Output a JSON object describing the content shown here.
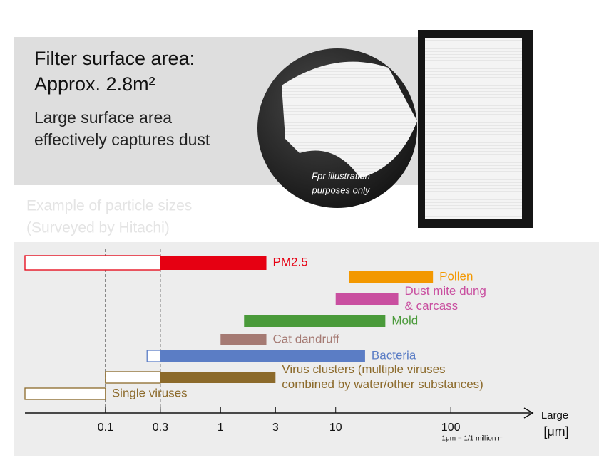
{
  "header": {
    "title_lines": [
      "Filter surface area:",
      "Approx. 2.8m²"
    ],
    "body_lines": [
      "Large surface area",
      "effectively captures dust"
    ],
    "photo_caption_lines": [
      "Fpr illustration",
      "purposes only"
    ]
  },
  "chart_data": {
    "type": "range-bar",
    "subtitle_lines": [
      "Example of particle sizes",
      "(Surveyed by Hitachi)"
    ],
    "x_label_lines": [
      "Large",
      "[μm]"
    ],
    "x_note": "1μm = 1/1 million m",
    "x_scale": "log",
    "xlim": [
      0.02,
      500
    ],
    "xticks": [
      0.1,
      0.3,
      1,
      3,
      10,
      100
    ],
    "reference_lines": [
      0.1,
      0.3
    ],
    "series": [
      {
        "name": [
          "PM2.5"
        ],
        "color": "#e60012",
        "outline": [
          0.02,
          0.3
        ],
        "filled": [
          0.3,
          2.5
        ]
      },
      {
        "name": [
          "Pollen"
        ],
        "color": "#f39800",
        "outline": null,
        "filled": [
          13,
          70
        ]
      },
      {
        "name": [
          "Dust mite dung",
          "& carcass"
        ],
        "color": "#c94fa0",
        "outline": null,
        "filled": [
          10,
          35
        ]
      },
      {
        "name": [
          "Mold"
        ],
        "color": "#4a9a3a",
        "outline": null,
        "filled": [
          1.6,
          27
        ]
      },
      {
        "name": [
          "Cat dandruff"
        ],
        "color": "#a57a73",
        "outline": null,
        "filled": [
          1,
          2.5
        ]
      },
      {
        "name": [
          "Bacteria"
        ],
        "color": "#5b7dc5",
        "outline": [
          0.23,
          0.3
        ],
        "filled": [
          0.3,
          18
        ]
      },
      {
        "name": [
          "Virus clusters (multiple viruses",
          "combined by water/other substances)"
        ],
        "color": "#8c6a2b",
        "outline": [
          0.1,
          0.3
        ],
        "filled": [
          0.3,
          3
        ]
      },
      {
        "name": [
          "Single viruses"
        ],
        "color": "#8c6a2b",
        "outline": [
          0.02,
          0.1
        ],
        "filled": null
      }
    ]
  }
}
